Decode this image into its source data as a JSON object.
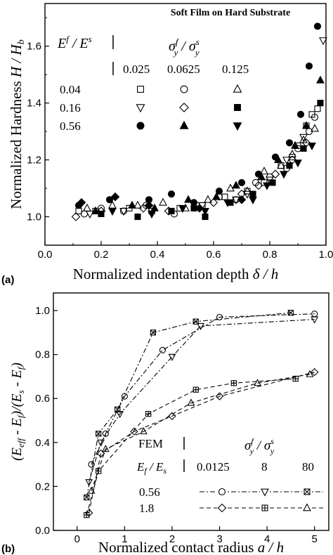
{
  "chart_data": [
    {
      "type": "scatter",
      "panel_label": "(a)",
      "title": "Soft Film on Hard Substrate",
      "xlabel": "Normalized indentation depth δ / h",
      "ylabel": "Normalized Hardness H / H_b",
      "xlim": [
        0.0,
        1.0
      ],
      "ylim": [
        0.9,
        1.75
      ],
      "xticks": [
        "0.0",
        "0.2",
        "0.4",
        "0.6",
        "0.8",
        "1.0"
      ],
      "yticks": [
        "1.0",
        "1.2",
        "1.4",
        "1.6"
      ],
      "legend": {
        "row_header": "E^f / E^s",
        "col_header": "σ_y^f / σ_y^s",
        "col_values": [
          "0.025",
          "0.0625",
          "0.125"
        ],
        "row_values": [
          "0.04",
          "0.16",
          "0.56"
        ],
        "markers": [
          [
            "open-square",
            "open-circle",
            "open-triangle-up"
          ],
          [
            "open-triangle-down",
            "open-diamond",
            "filled-square"
          ],
          [
            "filled-circle",
            "filled-triangle-up",
            "filled-triangle-down"
          ]
        ]
      },
      "series": [
        {
          "marker": "open-square",
          "x": [
            0.12,
            0.18,
            0.3,
            0.38,
            0.48,
            0.56,
            0.64,
            0.72,
            0.78,
            0.84,
            0.88,
            0.9,
            0.93,
            0.95,
            0.97
          ],
          "y": [
            1.02,
            1.02,
            1.03,
            1.02,
            1.03,
            1.04,
            1.07,
            1.09,
            1.12,
            1.18,
            1.21,
            1.25,
            1.32,
            1.36,
            1.38
          ]
        },
        {
          "marker": "open-circle",
          "x": [
            0.14,
            0.2,
            0.28,
            0.36,
            0.46,
            0.54,
            0.62,
            0.68,
            0.75,
            0.8,
            0.86,
            0.9,
            0.94,
            0.96
          ],
          "y": [
            1.01,
            1.03,
            1.02,
            1.04,
            1.01,
            1.04,
            1.07,
            1.06,
            1.12,
            1.14,
            1.17,
            1.24,
            1.3,
            1.35
          ]
        },
        {
          "marker": "open-triangle-up",
          "x": [
            0.15,
            0.24,
            0.33,
            0.42,
            0.5,
            0.58,
            0.66,
            0.72,
            0.78,
            0.84,
            0.88,
            0.92,
            0.96
          ],
          "y": [
            1.03,
            1.04,
            1.04,
            1.05,
            1.03,
            1.06,
            1.1,
            1.09,
            1.16,
            1.18,
            1.22,
            1.27,
            1.31
          ]
        },
        {
          "marker": "open-triangle-down",
          "x": [
            0.16,
            0.28,
            0.38,
            0.56,
            0.68,
            0.72,
            0.8,
            0.86,
            0.92,
            0.99
          ],
          "y": [
            1.01,
            1.02,
            1.02,
            1.04,
            1.06,
            1.08,
            1.13,
            1.2,
            1.28,
            1.62
          ]
        },
        {
          "marker": "open-diamond",
          "x": [
            0.11,
            0.2,
            0.35,
            0.44,
            0.6,
            0.7,
            0.76,
            0.82,
            0.88,
            0.93
          ],
          "y": [
            1.0,
            1.02,
            1.03,
            1.02,
            1.05,
            1.08,
            1.11,
            1.15,
            1.2,
            1.26
          ]
        },
        {
          "marker": "filled-square",
          "x": [
            0.2,
            0.33,
            0.45,
            0.53,
            0.57,
            0.66,
            0.74,
            0.81,
            0.87,
            0.92,
            0.98
          ],
          "y": [
            1.01,
            1.0,
            1.02,
            1.03,
            1.0,
            1.05,
            1.08,
            1.12,
            1.18,
            1.24,
            1.4
          ]
        },
        {
          "marker": "filled-circle",
          "x": [
            0.12,
            0.23,
            0.37,
            0.45,
            0.53,
            0.62,
            0.7,
            0.76,
            0.82,
            0.87,
            0.91,
            0.94,
            0.97
          ],
          "y": [
            1.04,
            1.06,
            1.06,
            1.08,
            1.05,
            1.09,
            1.12,
            1.15,
            1.21,
            1.26,
            1.36,
            1.53,
            1.67
          ]
        },
        {
          "marker": "filled-triangle-up",
          "x": [
            0.18,
            0.31,
            0.39,
            0.51,
            0.61,
            0.68,
            0.77,
            0.83,
            0.89,
            0.93,
            0.98
          ],
          "y": [
            1.02,
            1.04,
            1.03,
            1.06,
            1.07,
            1.11,
            1.14,
            1.2,
            1.25,
            1.32,
            1.48
          ]
        },
        {
          "marker": "filled-triangle-down",
          "x": [
            0.24,
            0.38,
            0.49,
            0.57,
            0.65,
            0.74,
            0.79,
            0.85,
            0.9,
            0.95
          ],
          "y": [
            1.02,
            1.01,
            1.03,
            1.02,
            1.05,
            1.06,
            1.11,
            1.15,
            1.19,
            1.25
          ]
        },
        {
          "marker": "filled-diamond",
          "x": [
            0.13,
            0.25,
            0.37,
            0.55,
            0.7
          ],
          "y": [
            1.05,
            1.07,
            1.04,
            1.03,
            1.06
          ]
        }
      ]
    },
    {
      "type": "line",
      "panel_label": "(b)",
      "xlabel": "Normalized contact radius a / h",
      "ylabel": "(E_eff - E_f)/(E_s - E_f)",
      "xlim": [
        -0.5,
        5.3
      ],
      "ylim": [
        0.0,
        1.08
      ],
      "xticks": [
        "0",
        "1",
        "2",
        "3",
        "4",
        "5"
      ],
      "yticks": [
        "0.0",
        "0.2",
        "0.4",
        "0.6",
        "0.8",
        "1.0"
      ],
      "legend": {
        "method_label": "FEM",
        "row_header": "E_f / E_s",
        "col_header": "σ_y^f / σ_y^s",
        "col_values": [
          "0.0125",
          "8",
          "80"
        ],
        "row_values": [
          "0.56",
          "1.8"
        ],
        "markers": [
          [
            "open-circle",
            "open-triangle-down",
            "crossed-square"
          ],
          [
            "open-diamond",
            "plus-square",
            "open-triangle-up"
          ]
        ]
      },
      "series": [
        {
          "marker": "open-circle",
          "dash": "dash-dot",
          "x": [
            0.3,
            0.6,
            1.0,
            1.8,
            3.0,
            5.0
          ],
          "y": [
            0.3,
            0.44,
            0.61,
            0.82,
            0.97,
            0.985
          ]
        },
        {
          "marker": "open-triangle-down",
          "dash": "dash-dot",
          "x": [
            0.25,
            0.5,
            0.9,
            2.0,
            2.6,
            5.0
          ],
          "y": [
            0.22,
            0.4,
            0.53,
            0.79,
            0.93,
            0.96
          ]
        },
        {
          "marker": "crossed-square",
          "dash": "dash-dot",
          "x": [
            0.2,
            0.45,
            0.85,
            1.6,
            2.5,
            4.5
          ],
          "y": [
            0.15,
            0.44,
            0.55,
            0.9,
            0.95,
            0.99
          ]
        },
        {
          "marker": "open-diamond",
          "dash": "dashed",
          "x": [
            0.25,
            0.5,
            1.2,
            2.0,
            3.0,
            5.0
          ],
          "y": [
            0.08,
            0.35,
            0.45,
            0.52,
            0.61,
            0.72
          ]
        },
        {
          "marker": "plus-square",
          "dash": "dashed",
          "x": [
            0.2,
            0.45,
            1.5,
            2.5,
            3.3,
            4.6
          ],
          "y": [
            0.07,
            0.27,
            0.53,
            0.64,
            0.67,
            0.69
          ]
        },
        {
          "marker": "open-triangle-up",
          "dash": "dashed",
          "x": [
            0.3,
            0.6,
            1.4,
            2.4,
            3.8,
            4.9
          ],
          "y": [
            0.18,
            0.37,
            0.45,
            0.58,
            0.67,
            0.71
          ]
        }
      ]
    }
  ]
}
